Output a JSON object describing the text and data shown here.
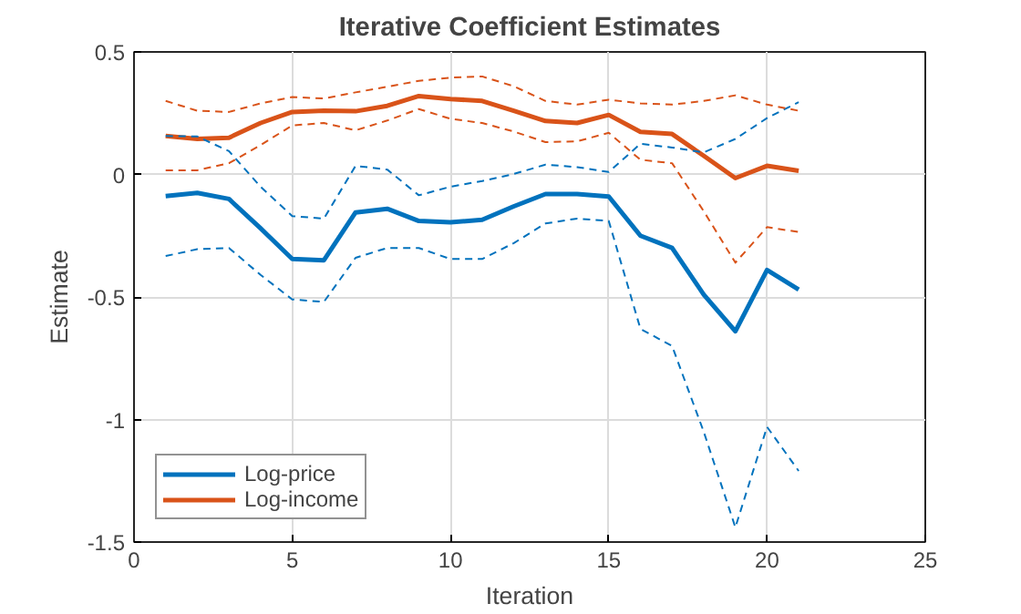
{
  "chart_data": {
    "type": "line",
    "title": "Iterative Coefficient Estimates",
    "xlabel": "Iteration",
    "ylabel": "Estimate",
    "x": [
      1,
      2,
      3,
      4,
      5,
      6,
      7,
      8,
      9,
      10,
      11,
      12,
      13,
      14,
      15,
      16,
      17,
      18,
      19,
      20,
      21
    ],
    "xlim": [
      0,
      25
    ],
    "xticks": [
      0,
      5,
      10,
      15,
      20,
      25
    ],
    "ylim": [
      -1.5,
      0.5
    ],
    "yticks": [
      -1.5,
      -1,
      -0.5,
      0,
      0.5
    ],
    "grid": true,
    "legend": "bottom left",
    "marker": "none",
    "series": [
      {
        "name": "Log-price",
        "color": "#0072bd",
        "line_style": "solid",
        "values": [
          -0.088,
          -0.075,
          -0.1,
          -0.22,
          -0.345,
          -0.35,
          -0.155,
          -0.14,
          -0.19,
          -0.195,
          -0.185,
          -0.13,
          -0.08,
          -0.08,
          -0.09,
          -0.25,
          -0.3,
          -0.49,
          -0.64,
          -0.39,
          -0.47
        ]
      },
      {
        "name": "Log-income",
        "color": "#d95319",
        "line_style": "solid",
        "values": [
          0.157,
          0.145,
          0.15,
          0.21,
          0.255,
          0.26,
          0.258,
          0.28,
          0.32,
          0.308,
          0.3,
          0.26,
          0.218,
          0.21,
          0.243,
          0.174,
          0.165,
          0.076,
          -0.015,
          0.035,
          0.015
        ]
      },
      {
        "color": "#0072bd",
        "line_style": "dashed",
        "values": [
          0.157,
          0.155,
          0.095,
          -0.05,
          -0.17,
          -0.18,
          0.035,
          0.02,
          -0.085,
          -0.05,
          -0.027,
          0.002,
          0.04,
          0.03,
          0.01,
          0.125,
          0.11,
          0.09,
          0.145,
          0.23,
          0.295
        ]
      },
      {
        "color": "#0072bd",
        "line_style": "dashed",
        "values": [
          -0.333,
          -0.305,
          -0.3,
          -0.41,
          -0.51,
          -0.52,
          -0.34,
          -0.3,
          -0.3,
          -0.345,
          -0.345,
          -0.28,
          -0.2,
          -0.18,
          -0.19,
          -0.63,
          -0.7,
          -1.05,
          -1.44,
          -1.03,
          -1.21
        ]
      },
      {
        "color": "#d95319",
        "line_style": "dashed",
        "values": [
          0.3,
          0.26,
          0.255,
          0.29,
          0.316,
          0.31,
          0.335,
          0.358,
          0.382,
          0.395,
          0.4,
          0.36,
          0.3,
          0.285,
          0.305,
          0.29,
          0.285,
          0.3,
          0.323,
          0.285,
          0.26
        ]
      },
      {
        "color": "#d95319",
        "line_style": "dashed",
        "values": [
          0.017,
          0.017,
          0.046,
          0.12,
          0.2,
          0.21,
          0.18,
          0.22,
          0.267,
          0.227,
          0.21,
          0.175,
          0.132,
          0.135,
          0.17,
          0.06,
          0.046,
          -0.15,
          -0.36,
          -0.215,
          -0.235
        ]
      }
    ]
  }
}
